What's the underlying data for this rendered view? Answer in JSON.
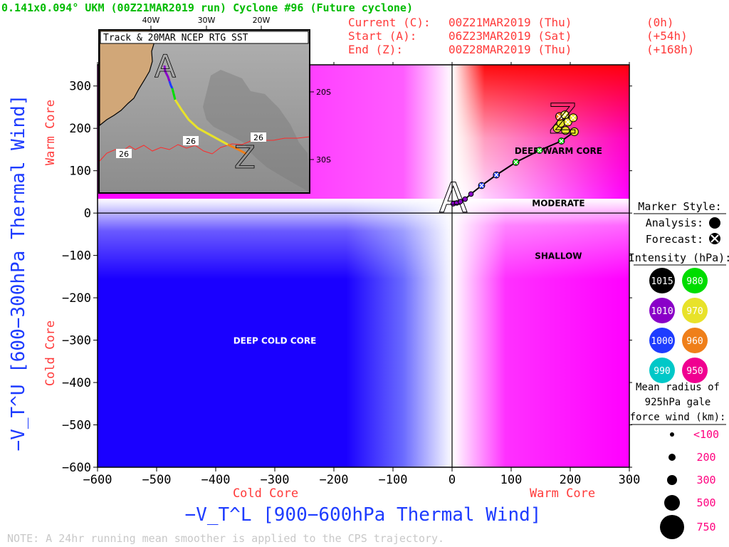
{
  "header": {
    "title": "0.141x0.094° UKM (00Z21MAR2019 run) Cyclone #96 (Future cyclone)",
    "current_label": "Current (C):",
    "current_time": "00Z21MAR2019 (Thu)",
    "current_offset": "(0h)",
    "start_label": "Start (A):",
    "start_time": "06Z23MAR2019 (Sat)",
    "start_offset": "(+54h)",
    "end_label": "End (Z):",
    "end_time": "00Z28MAR2019 (Thu)",
    "end_offset": "(+168h)"
  },
  "chart_data": {
    "type": "scatter",
    "xlabel": "−V_T^L [900−600hPa Thermal Wind]",
    "ylabel": "−V_T^U [600−300hPa Thermal Wind]",
    "x_side_labels": [
      "Cold Core",
      "Warm Core"
    ],
    "y_side_labels": [
      "Cold Core",
      "Warm Core"
    ],
    "xlim": [
      -600,
      300
    ],
    "ylim": [
      -600,
      350
    ],
    "xticks": [
      "−600",
      "−500",
      "−400",
      "−300",
      "−200",
      "−100",
      "0",
      "100",
      "200",
      "300"
    ],
    "yticks": [
      "300",
      "200",
      "100",
      "0",
      "−100",
      "−200",
      "−300",
      "−400",
      "−500",
      "−600"
    ],
    "region_labels": [
      {
        "text": "DEEP WARM CORE",
        "x": 180,
        "y": 148
      },
      {
        "text": "MODERATE",
        "x": 180,
        "y": 25
      },
      {
        "text": "SHALLOW",
        "x": 180,
        "y": -100
      },
      {
        "text": "DEEP COLD CORE",
        "x": -300,
        "y": -300
      }
    ],
    "start_marker": "A",
    "end_marker": "Z",
    "series": [
      {
        "values": [
          {
            "x": 2,
            "y": 22,
            "mslp": 1010,
            "kind": "analysis"
          },
          {
            "x": 8,
            "y": 24,
            "mslp": 1010,
            "kind": "analysis"
          },
          {
            "x": 14,
            "y": 27,
            "mslp": 1010,
            "kind": "analysis"
          },
          {
            "x": 22,
            "y": 33,
            "mslp": 1010,
            "kind": "analysis"
          },
          {
            "x": 32,
            "y": 45,
            "mslp": 1010,
            "kind": "analysis"
          },
          {
            "x": 50,
            "y": 65,
            "mslp": 1000,
            "kind": "forecast"
          },
          {
            "x": 75,
            "y": 90,
            "mslp": 1000,
            "kind": "forecast"
          },
          {
            "x": 108,
            "y": 120,
            "mslp": 980,
            "kind": "forecast"
          },
          {
            "x": 148,
            "y": 148,
            "mslp": 980,
            "kind": "forecast"
          },
          {
            "x": 185,
            "y": 170,
            "mslp": 980,
            "kind": "forecast"
          },
          {
            "x": 207,
            "y": 192,
            "mslp": 970,
            "kind": "analysis"
          },
          {
            "x": 192,
            "y": 195,
            "mslp": 970,
            "kind": "analysis"
          },
          {
            "x": 178,
            "y": 200,
            "mslp": 970,
            "kind": "analysis"
          },
          {
            "x": 184,
            "y": 212,
            "mslp": 970,
            "kind": "analysis"
          },
          {
            "x": 196,
            "y": 215,
            "mslp": 970,
            "kind": "forecast"
          },
          {
            "x": 205,
            "y": 225,
            "mslp": 970,
            "kind": "forecast"
          },
          {
            "x": 182,
            "y": 228,
            "mslp": 960,
            "kind": "forecast"
          },
          {
            "x": 191,
            "y": 232,
            "mslp": 970,
            "kind": "forecast"
          }
        ]
      }
    ]
  },
  "inset": {
    "title": "Track & 20MAR NCEP RTG SST",
    "lon_labels": [
      "40W",
      "30W",
      "20W"
    ],
    "lat_labels": [
      "20S",
      "30S"
    ],
    "isotherm_labels": [
      "26",
      "26",
      "26"
    ],
    "start_marker": "A",
    "end_marker": "Z"
  },
  "legend": {
    "marker_style_title": "Marker Style:",
    "analysis_label": "Analysis:",
    "forecast_label": "Forecast:",
    "intensity_title": "Intensity (hPa):",
    "intensity": [
      {
        "label": "1015",
        "color": "#000000"
      },
      {
        "label": "980",
        "color": "#00dd00"
      },
      {
        "label": "1010",
        "color": "#8a00c8"
      },
      {
        "label": "970",
        "color": "#e8e22a"
      },
      {
        "label": "1000",
        "color": "#1e3cff"
      },
      {
        "label": "960",
        "color": "#ef7f1a"
      },
      {
        "label": "990",
        "color": "#00c8c8"
      },
      {
        "label": "950",
        "color": "#f00090"
      }
    ],
    "radius_title_1": "Mean radius of",
    "radius_title_2": "925hPa gale",
    "radius_title_3": "force wind (km):",
    "radius": [
      {
        "label": "<100",
        "size": 3
      },
      {
        "label": "200",
        "size": 5
      },
      {
        "label": "300",
        "size": 7
      },
      {
        "label": "500",
        "size": 11
      },
      {
        "label": "750",
        "size": 17
      }
    ]
  },
  "note": "NOTE: A 24hr running mean smoother is applied to the CPS trajectory."
}
